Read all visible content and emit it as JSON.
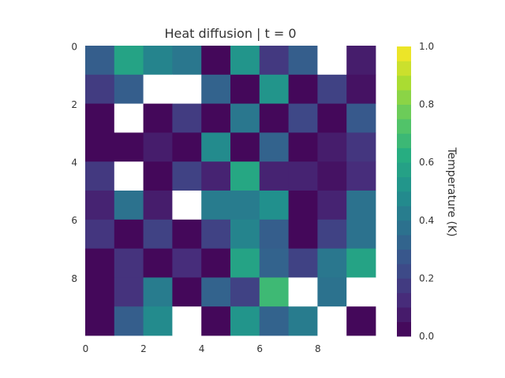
{
  "chart_data": {
    "type": "heatmap",
    "title": "Heat diffusion | t = 0",
    "xlabel": "",
    "ylabel": "",
    "x_ticks": [
      "0",
      "2",
      "4",
      "6",
      "8"
    ],
    "y_ticks": [
      "0",
      "2",
      "4",
      "6",
      "8"
    ],
    "rows": 10,
    "cols": 10,
    "values": [
      [
        0.3,
        0.58,
        0.45,
        0.4,
        0.02,
        0.52,
        0.17,
        0.3,
        null,
        0.08
      ],
      [
        0.18,
        0.3,
        null,
        null,
        0.32,
        0.02,
        0.52,
        0.02,
        0.2,
        0.05
      ],
      [
        0.02,
        null,
        0.02,
        0.18,
        0.02,
        0.4,
        0.02,
        0.22,
        0.02,
        0.28
      ],
      [
        0.02,
        0.02,
        0.08,
        0.02,
        0.48,
        0.02,
        0.32,
        0.02,
        0.08,
        0.16
      ],
      [
        0.17,
        null,
        0.02,
        0.2,
        0.1,
        0.6,
        0.1,
        0.1,
        0.05,
        0.13
      ],
      [
        0.1,
        0.38,
        0.08,
        null,
        0.42,
        0.42,
        0.5,
        0.02,
        0.1,
        0.38
      ],
      [
        0.16,
        0.02,
        0.2,
        0.02,
        0.2,
        0.45,
        0.3,
        0.02,
        0.2,
        0.38
      ],
      [
        0.02,
        0.15,
        0.02,
        0.13,
        0.02,
        0.58,
        0.32,
        0.2,
        0.4,
        0.58
      ],
      [
        0.02,
        0.15,
        0.42,
        0.02,
        0.32,
        0.2,
        0.68,
        null,
        0.38,
        null
      ],
      [
        0.02,
        0.3,
        0.48,
        null,
        0.02,
        0.52,
        0.32,
        0.42,
        null,
        0.02
      ]
    ],
    "colormap": "viridis",
    "vmin": 0.0,
    "vmax": 1.0,
    "missing_color": "#ffffff",
    "colorbar": {
      "label": "Temperature (K)",
      "ticks": [
        "0.0",
        "0.2",
        "0.4",
        "0.6",
        "0.8",
        "1.0"
      ],
      "levels": 20
    },
    "grid": false,
    "legend": "none"
  }
}
